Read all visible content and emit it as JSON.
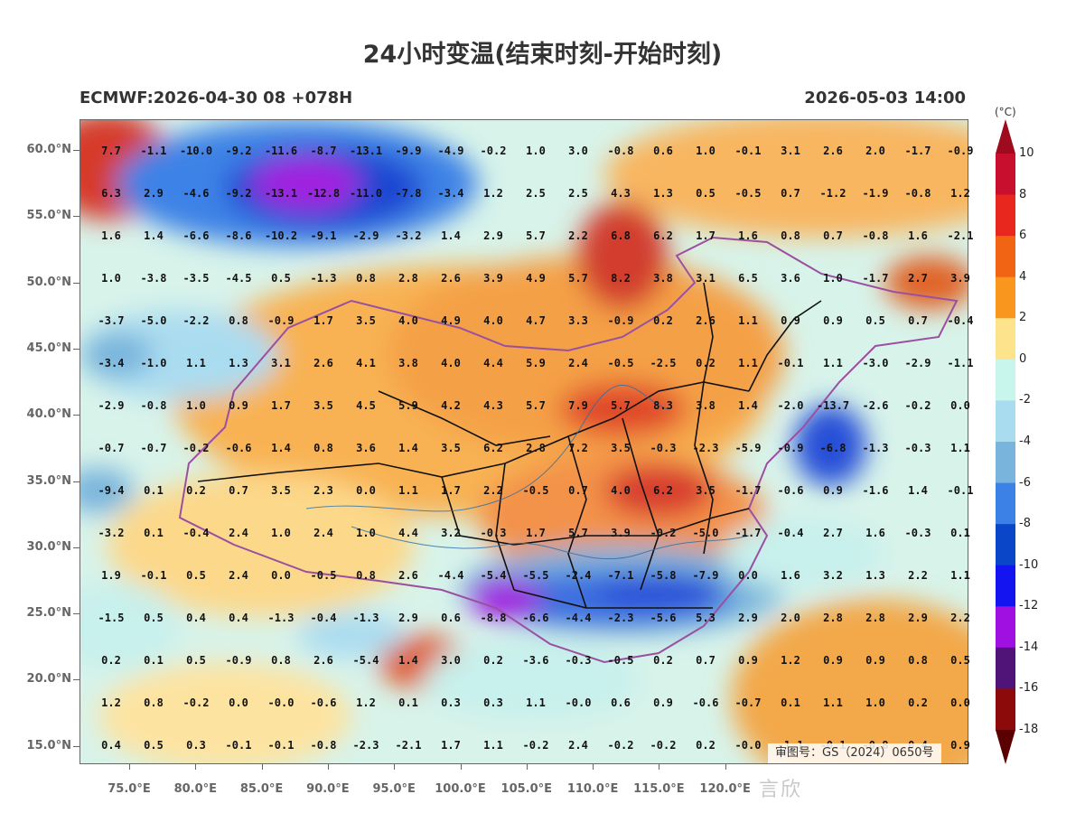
{
  "title": "24小时变温(结束时刻-开始时刻)",
  "subtitle_left": "ECMWF:2026-04-30 08 +078H",
  "subtitle_right": "2026-05-03 14:00",
  "unit_label": "(°C)",
  "gs_note": "审图号：GS（2024）0650号",
  "watermark": "言欣",
  "lat_labels": [
    "60.0°N",
    "55.0°N",
    "50.0°N",
    "45.0°N",
    "40.0°N",
    "35.0°N",
    "30.0°N",
    "25.0°N",
    "20.0°N",
    "15.0°N"
  ],
  "lon_labels": [
    "75.0°E",
    "80.0°E",
    "85.0°E",
    "90.0°E",
    "95.0°E",
    "100.0°E",
    "105.0°E",
    "110.0°E",
    "115.0°E",
    "120.0°E"
  ],
  "legend": {
    "labels": [
      "10",
      "8",
      "6",
      "4",
      "2",
      "0",
      "-2",
      "-4",
      "-6",
      "-8",
      "-10",
      "-12",
      "-14",
      "-16",
      "-18"
    ],
    "colors": [
      "#9e0a1e",
      "#c8102e",
      "#e8281e",
      "#f06414",
      "#f8961e",
      "#fde38c",
      "#c8f5ec",
      "#aadcf0",
      "#78b4dc",
      "#3c82e6",
      "#0a46c8",
      "#1414f0",
      "#a010e0",
      "#501478",
      "#8c0a0a",
      "#5a0000"
    ]
  },
  "grid_values": [
    [
      "7.7",
      "-1.1",
      "-10.0",
      "-9.2",
      "-11.6",
      "-8.7",
      "-13.1",
      "-9.9",
      "-4.9",
      "-0.2",
      "1.0",
      "3.0",
      "-0.8",
      "0.6",
      "1.0",
      "-0.1",
      "3.1",
      "2.6",
      "2.0",
      "-1.7",
      "-0.9"
    ],
    [
      "6.3",
      "2.9",
      "-4.6",
      "-9.2",
      "-13.1",
      "-12.8",
      "-11.0",
      "-7.8",
      "-3.4",
      "1.2",
      "2.5",
      "2.5",
      "4.3",
      "1.3",
      "0.5",
      "-0.5",
      "0.7",
      "-1.2",
      "-1.9",
      "-0.8",
      "1.2"
    ],
    [
      "1.6",
      "1.4",
      "-6.6",
      "-8.6",
      "-10.2",
      "-9.1",
      "-2.9",
      "-3.2",
      "1.4",
      "2.9",
      "5.7",
      "2.2",
      "6.8",
      "6.2",
      "1.7",
      "1.6",
      "0.8",
      "0.7",
      "-0.8",
      "1.6",
      "-2.1"
    ],
    [
      "1.0",
      "-3.8",
      "-3.5",
      "-4.5",
      "0.5",
      "-1.3",
      "0.8",
      "2.8",
      "2.6",
      "3.9",
      "4.9",
      "5.7",
      "8.2",
      "3.8",
      "3.1",
      "6.5",
      "3.6",
      "1.0",
      "-1.7",
      "2.7",
      "3.9"
    ],
    [
      "-3.7",
      "-5.0",
      "-2.2",
      "0.8",
      "-0.9",
      "1.7",
      "3.5",
      "4.0",
      "4.9",
      "4.0",
      "4.7",
      "3.3",
      "-0.9",
      "0.2",
      "2.6",
      "1.1",
      "0.9",
      "0.9",
      "0.5",
      "0.7",
      "-0.4"
    ],
    [
      "-3.4",
      "-1.0",
      "1.1",
      "1.3",
      "3.1",
      "2.6",
      "4.1",
      "3.8",
      "4.0",
      "4.4",
      "5.9",
      "2.4",
      "-0.5",
      "-2.5",
      "0.2",
      "1.1",
      "-0.1",
      "1.1",
      "-3.0",
      "-2.9",
      "-1.1"
    ],
    [
      "-2.9",
      "-0.8",
      "1.0",
      "0.9",
      "1.7",
      "3.5",
      "4.5",
      "5.9",
      "4.2",
      "4.3",
      "5.7",
      "7.9",
      "5.7",
      "8.3",
      "3.8",
      "1.4",
      "-2.0",
      "-13.7",
      "-2.6",
      "-0.2",
      "0.0"
    ],
    [
      "-0.7",
      "-0.7",
      "-0.2",
      "-0.6",
      "1.4",
      "0.8",
      "3.6",
      "1.4",
      "3.5",
      "6.2",
      "2.8",
      "7.2",
      "3.5",
      "-0.3",
      "-2.3",
      "-5.9",
      "-0.9",
      "-6.8",
      "-1.3",
      "-0.3",
      "1.1"
    ],
    [
      "-9.4",
      "0.1",
      "0.2",
      "0.7",
      "3.5",
      "2.3",
      "0.0",
      "1.1",
      "1.7",
      "2.2",
      "-0.5",
      "0.7",
      "4.0",
      "6.2",
      "3.5",
      "-1.7",
      "-0.6",
      "0.9",
      "-1.6",
      "1.4",
      "-0.1"
    ],
    [
      "-3.2",
      "0.1",
      "-0.4",
      "2.4",
      "1.0",
      "2.4",
      "1.0",
      "4.4",
      "3.2",
      "-0.3",
      "1.7",
      "5.7",
      "3.9",
      "-0.2",
      "-5.0",
      "-1.7",
      "-0.4",
      "2.7",
      "1.6",
      "-0.3",
      "0.1"
    ],
    [
      "1.9",
      "-0.1",
      "0.5",
      "2.4",
      "0.0",
      "-0.5",
      "0.8",
      "2.6",
      "-4.4",
      "-5.4",
      "-5.5",
      "-2.4",
      "-7.1",
      "-5.8",
      "-7.9",
      "0.0",
      "1.6",
      "3.2",
      "1.3",
      "2.2",
      "1.1"
    ],
    [
      "-1.5",
      "0.5",
      "0.4",
      "0.4",
      "-1.3",
      "-0.4",
      "-1.3",
      "2.9",
      "0.6",
      "-8.8",
      "-6.6",
      "-4.4",
      "-2.3",
      "-5.6",
      "5.3",
      "2.9",
      "2.0",
      "2.8",
      "2.8",
      "2.9",
      "2.2"
    ],
    [
      "0.2",
      "0.1",
      "0.5",
      "-0.9",
      "0.8",
      "2.6",
      "-5.4",
      "1.4",
      "3.0",
      "0.2",
      "-3.6",
      "-0.3",
      "-0.5",
      "0.2",
      "0.7",
      "0.9",
      "1.2",
      "0.9",
      "0.9",
      "0.8",
      "0.5"
    ],
    [
      "1.2",
      "0.8",
      "-0.2",
      "0.0",
      "-0.0",
      "-0.6",
      "1.2",
      "0.1",
      "0.3",
      "0.3",
      "1.1",
      "-0.0",
      "0.6",
      "0.9",
      "-0.6",
      "-0.7",
      "0.1",
      "1.1",
      "1.0",
      "0.2",
      "0.0"
    ],
    [
      "0.4",
      "0.5",
      "0.3",
      "-0.1",
      "-0.1",
      "-0.8",
      "-2.3",
      "-2.1",
      "1.7",
      "1.1",
      "-0.2",
      "2.4",
      "-0.2",
      "-0.2",
      "0.2",
      "-0.0",
      "-1.1",
      "-0.1",
      "-0.8",
      "0.4",
      "0.9"
    ]
  ]
}
